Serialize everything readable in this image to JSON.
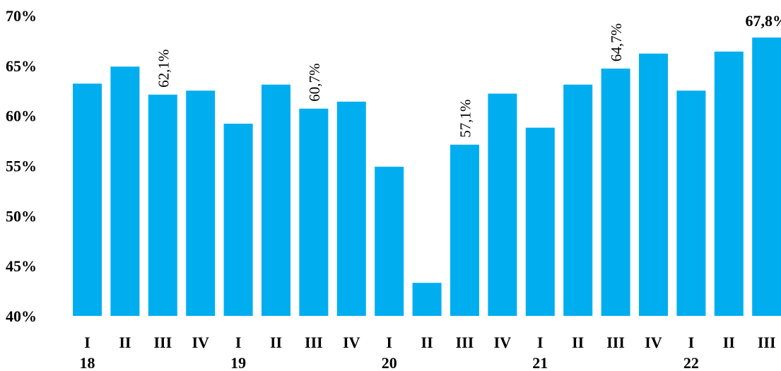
{
  "chart_data": {
    "type": "bar",
    "title": "",
    "xlabel": "",
    "ylabel": "",
    "ylim": [
      40,
      70
    ],
    "y_ticks": [
      "40%",
      "45%",
      "50%",
      "55%",
      "60%",
      "65%",
      "70%"
    ],
    "grid": false,
    "bar_color": "#00AEEF",
    "categories": [
      "I",
      "II",
      "III",
      "IV",
      "I",
      "II",
      "III",
      "IV",
      "I",
      "II",
      "III",
      "IV",
      "I",
      "II",
      "III",
      "IV",
      "I",
      "II",
      "III"
    ],
    "years": [
      "18",
      "",
      "",
      "",
      "19",
      "",
      "",
      "",
      "20",
      "",
      "",
      "",
      "21",
      "",
      "",
      "",
      "22",
      "",
      ""
    ],
    "values": [
      63.2,
      64.9,
      62.1,
      62.5,
      59.2,
      63.1,
      60.7,
      61.4,
      54.9,
      43.3,
      57.1,
      62.2,
      58.8,
      63.1,
      64.7,
      66.2,
      62.5,
      66.4,
      67.8
    ],
    "data_labels": [
      "",
      "",
      "62,1%",
      "",
      "",
      "",
      "60,7%",
      "",
      "",
      "",
      "57,1%",
      "",
      "",
      "",
      "64,7%",
      "",
      "",
      "",
      "67,8%"
    ]
  }
}
